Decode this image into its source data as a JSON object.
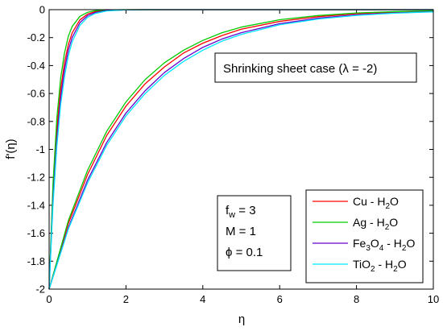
{
  "chart_data": {
    "type": "line",
    "title": "",
    "xlabel": "η",
    "ylabel": "f'(η)",
    "xlim": [
      0,
      10
    ],
    "ylim": [
      -2,
      0
    ],
    "xticks": [
      "0",
      "2",
      "4",
      "6",
      "8",
      "10"
    ],
    "yticks": [
      "0",
      "-0.2",
      "-0.4",
      "-0.6",
      "-0.8",
      "-1",
      "-1.2",
      "-1.4",
      "-1.6",
      "-1.8",
      "-2"
    ],
    "grid": false,
    "legend_position": "bottom-right",
    "annotation_case": "Shrinking sheet case (λ = -2)",
    "params": [
      "f_w = 3",
      "M = 1",
      "ϕ = 0.1"
    ],
    "series": [
      {
        "name": "Cu - H2O",
        "color": "#ff0000",
        "branches": [
          {
            "x": [
              0,
              0.1,
              0.2,
              0.3,
              0.4,
              0.5,
              0.6,
              0.8,
              1.0,
              1.2,
              1.5,
              2.0,
              2.5,
              3.0,
              10.0
            ],
            "y": [
              -2,
              -1.3,
              -0.86,
              -0.57,
              -0.38,
              -0.25,
              -0.166,
              -0.073,
              -0.032,
              -0.014,
              -0.004,
              -0.0006,
              -0.0001,
              0,
              0
            ]
          },
          {
            "x": [
              0,
              0.5,
              1.0,
              1.5,
              2.0,
              2.5,
              3.0,
              3.5,
              4.0,
              4.5,
              5.0,
              6.0,
              7.0,
              8.0,
              9.0,
              10.0
            ],
            "y": [
              -2,
              -1.53,
              -1.18,
              -0.9,
              -0.69,
              -0.53,
              -0.41,
              -0.31,
              -0.24,
              -0.185,
              -0.14,
              -0.084,
              -0.05,
              -0.029,
              -0.017,
              -0.01
            ]
          }
        ]
      },
      {
        "name": "Ag - H2O",
        "color": "#00cc00",
        "branches": [
          {
            "x": [
              0,
              0.1,
              0.2,
              0.3,
              0.4,
              0.5,
              0.6,
              0.8,
              1.0,
              1.2,
              1.5,
              2.0,
              2.5,
              3.0,
              10.0
            ],
            "y": [
              -2,
              -1.25,
              -0.78,
              -0.49,
              -0.31,
              -0.19,
              -0.12,
              -0.048,
              -0.019,
              -0.0075,
              -0.0019,
              -0.0002,
              0,
              0,
              0
            ]
          },
          {
            "x": [
              0,
              0.5,
              1.0,
              1.5,
              2.0,
              2.5,
              3.0,
              3.5,
              4.0,
              4.5,
              5.0,
              6.0,
              7.0,
              8.0,
              9.0,
              10.0
            ],
            "y": [
              -2,
              -1.51,
              -1.15,
              -0.87,
              -0.66,
              -0.5,
              -0.38,
              -0.29,
              -0.22,
              -0.165,
              -0.125,
              -0.072,
              -0.042,
              -0.024,
              -0.014,
              -0.008
            ]
          }
        ]
      },
      {
        "name": "Fe3O4 - H2O",
        "color": "#6600cc",
        "branches": [
          {
            "x": [
              0,
              0.1,
              0.2,
              0.3,
              0.4,
              0.5,
              0.6,
              0.8,
              1.0,
              1.2,
              1.5,
              2.0,
              2.5,
              3.0,
              10.0
            ],
            "y": [
              -2,
              -1.36,
              -0.93,
              -0.63,
              -0.43,
              -0.29,
              -0.2,
              -0.093,
              -0.043,
              -0.02,
              -0.0063,
              -0.001,
              -0.0002,
              0,
              0
            ]
          },
          {
            "x": [
              0,
              0.5,
              1.0,
              1.5,
              2.0,
              2.5,
              3.0,
              3.5,
              4.0,
              4.5,
              5.0,
              6.0,
              7.0,
              8.0,
              9.0,
              10.0
            ],
            "y": [
              -2,
              -1.56,
              -1.22,
              -0.95,
              -0.74,
              -0.58,
              -0.45,
              -0.35,
              -0.27,
              -0.21,
              -0.165,
              -0.1,
              -0.061,
              -0.037,
              -0.023,
              -0.014
            ]
          }
        ]
      },
      {
        "name": "TiO2 - H2O",
        "color": "#00e5ff",
        "branches": [
          {
            "x": [
              0,
              0.1,
              0.2,
              0.3,
              0.4,
              0.5,
              0.6,
              0.8,
              1.0,
              1.2,
              1.5,
              2.0,
              2.5,
              3.0,
              10.0
            ],
            "y": [
              -2,
              -1.4,
              -0.98,
              -0.68,
              -0.48,
              -0.33,
              -0.23,
              -0.113,
              -0.055,
              -0.027,
              -0.0092,
              -0.0015,
              -0.0003,
              0,
              0
            ]
          },
          {
            "x": [
              0,
              0.5,
              1.0,
              1.5,
              2.0,
              2.5,
              3.0,
              3.5,
              4.0,
              4.5,
              5.0,
              6.0,
              7.0,
              8.0,
              9.0,
              10.0
            ],
            "y": [
              -2,
              -1.57,
              -1.24,
              -0.97,
              -0.76,
              -0.6,
              -0.47,
              -0.37,
              -0.29,
              -0.225,
              -0.177,
              -0.108,
              -0.067,
              -0.041,
              -0.025,
              -0.016
            ]
          }
        ]
      }
    ]
  }
}
